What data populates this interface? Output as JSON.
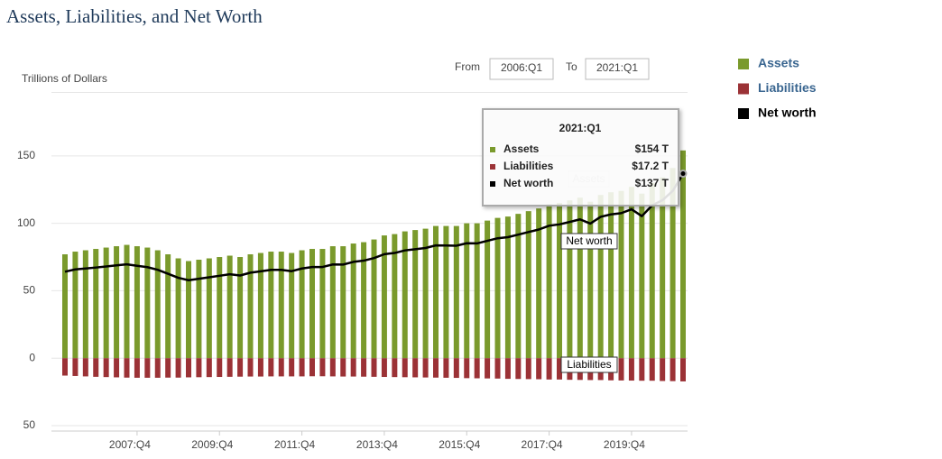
{
  "chart_data": {
    "type": "bar",
    "title": "Assets, Liabilities, and Net Worth",
    "y_axis_label": "Trillions of Dollars",
    "range_controls": {
      "from_label": "From",
      "from_value": "2006:Q1",
      "to_label": "To",
      "to_value": "2021:Q1"
    },
    "categories": [
      null,
      null,
      null,
      null,
      null,
      null,
      null,
      "2007:Q4",
      null,
      null,
      null,
      null,
      null,
      null,
      null,
      "2009:Q4",
      null,
      null,
      null,
      null,
      null,
      null,
      null,
      "2011:Q4",
      null,
      null,
      null,
      null,
      null,
      null,
      null,
      "2013:Q4",
      null,
      null,
      null,
      null,
      null,
      null,
      null,
      "2015:Q4",
      null,
      null,
      null,
      null,
      null,
      null,
      null,
      "2017:Q4",
      null,
      null,
      null,
      null,
      null,
      null,
      null,
      "2019:Q4",
      null,
      null,
      null,
      null,
      null
    ],
    "series": [
      {
        "name": "Assets",
        "color": "#7a9a2c",
        "type": "bar",
        "values": [
          77,
          79,
          80,
          81,
          82,
          83,
          84,
          83,
          82,
          80,
          77,
          74,
          72,
          73,
          74,
          75,
          76,
          75,
          77,
          78,
          79,
          79,
          78,
          80,
          81,
          81,
          83,
          83,
          85,
          86,
          88,
          91,
          92,
          94,
          95,
          96,
          98,
          98,
          98,
          100,
          100,
          102,
          104,
          105,
          107,
          109,
          111,
          114,
          115,
          117,
          119,
          116,
          121,
          123,
          124,
          127,
          122,
          130,
          134,
          141,
          154
        ]
      },
      {
        "name": "Liabilities",
        "color": "#9b3236",
        "type": "bar",
        "values": [
          -12.9,
          -13.2,
          -13.5,
          -13.8,
          -14.0,
          -14.2,
          -14.4,
          -14.5,
          -14.5,
          -14.5,
          -14.4,
          -14.4,
          -14.2,
          -14.1,
          -14.0,
          -13.9,
          -13.8,
          -13.7,
          -13.6,
          -13.6,
          -13.5,
          -13.5,
          -13.5,
          -13.5,
          -13.4,
          -13.4,
          -13.5,
          -13.6,
          -13.6,
          -13.7,
          -13.8,
          -13.9,
          -14.0,
          -14.1,
          -14.2,
          -14.3,
          -14.4,
          -14.5,
          -14.6,
          -14.8,
          -14.9,
          -15.0,
          -15.1,
          -15.3,
          -15.4,
          -15.5,
          -15.6,
          -15.8,
          -15.8,
          -16.0,
          -16.1,
          -16.2,
          -16.2,
          -16.4,
          -16.5,
          -16.6,
          -16.7,
          -16.7,
          -16.9,
          -17.0,
          -17.2
        ]
      },
      {
        "name": "Net worth",
        "color": "#000000",
        "type": "line",
        "values": [
          64.1,
          65.8,
          66.5,
          67.2,
          68.0,
          68.8,
          69.6,
          68.5,
          67.5,
          65.5,
          62.6,
          59.6,
          57.8,
          58.9,
          60.0,
          61.1,
          62.2,
          61.3,
          63.4,
          64.4,
          65.5,
          65.5,
          64.5,
          66.5,
          67.6,
          67.6,
          69.5,
          69.4,
          71.4,
          72.3,
          74.2,
          77.1,
          78.0,
          79.9,
          80.8,
          81.7,
          83.6,
          83.5,
          83.4,
          85.2,
          85.1,
          87.0,
          88.9,
          89.7,
          91.6,
          93.5,
          95.4,
          98.2,
          99.2,
          101.0,
          102.9,
          99.8,
          104.8,
          106.6,
          107.5,
          110.4,
          105.3,
          113.3,
          117.1,
          124.0,
          136.8
        ]
      }
    ],
    "ylim": [
      -54,
      197
    ],
    "yticks": [
      {
        "value": -50,
        "label": "50"
      },
      0,
      50,
      100,
      150
    ],
    "grid": true,
    "legend": "right",
    "tooltip": {
      "title": "2021:Q1",
      "labels": [
        "$154 T",
        "$17.2 T",
        "$137 T"
      ]
    },
    "annotations": [
      "Assets",
      "Net worth",
      "Liabilities"
    ]
  }
}
